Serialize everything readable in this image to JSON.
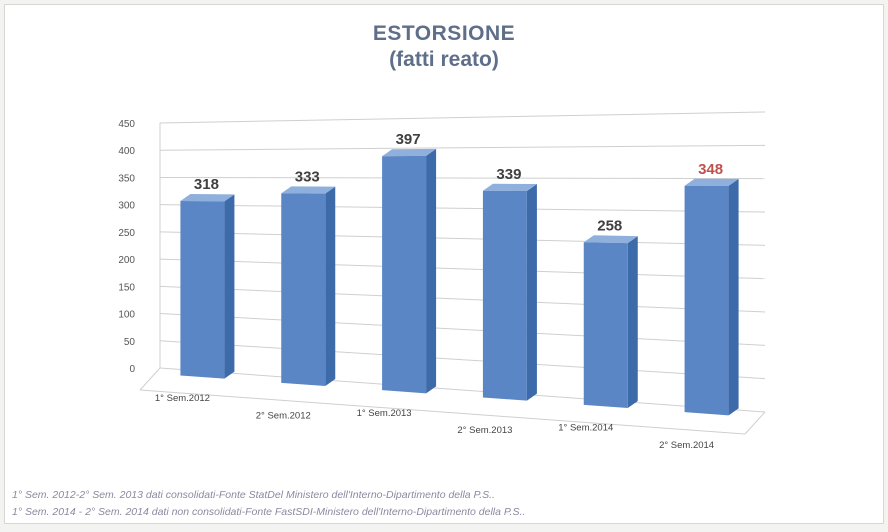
{
  "chart_data": {
    "type": "bar",
    "title": "ESTORSIONE",
    "subtitle": "(fatti reato)",
    "categories": [
      "1° Sem.2012",
      "2° Sem.2012",
      "1° Sem.2013",
      "2° Sem.2013",
      "1° Sem.2014",
      "2° Sem.2014"
    ],
    "values": [
      318,
      333,
      397,
      339,
      258,
      348
    ],
    "data_labels": [
      "318",
      "333",
      "397",
      "339",
      "258",
      "348"
    ],
    "yticks": [
      "0",
      "50",
      "100",
      "150",
      "200",
      "250",
      "300",
      "350",
      "400",
      "450"
    ],
    "ylim": [
      0,
      450
    ],
    "grid": true,
    "legend": "none",
    "colors": {
      "bar_front": "#5b86c5",
      "bar_side": "#3d6aa8",
      "bar_top": "#8fb0dd",
      "label": "#404040",
      "highlight_label": "#c0504d",
      "title": "#5f6f8a"
    },
    "highlight_index": 5
  },
  "footnotes": [
    "1° Sem. 2012-2° Sem. 2013 dati consolidati-Fonte StatDel Ministero dell'Interno-Dipartimento della P.S..",
    "1° Sem. 2014 - 2° Sem. 2014 dati non consolidati-Fonte FastSDI-Ministero dell'Interno-Dipartimento della P.S.."
  ]
}
